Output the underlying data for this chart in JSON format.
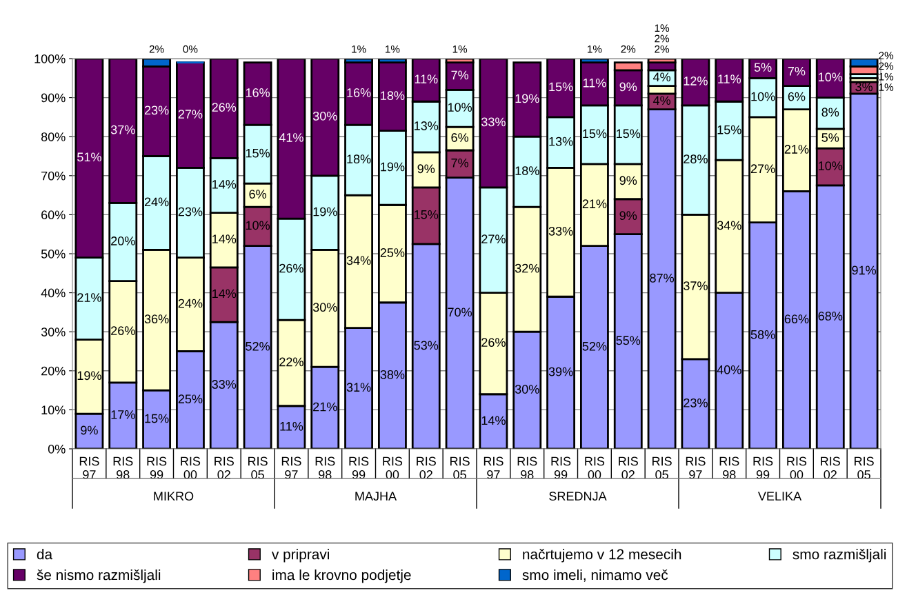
{
  "chart_data": {
    "type": "bar",
    "stacked": true,
    "categories": [
      "RIS\n97",
      "RIS\n98",
      "RIS\n99",
      "RIS\n00",
      "RIS\n02",
      "RIS\n05",
      "RIS\n97",
      "RIS\n98",
      "RIS\n99",
      "RIS\n00",
      "RIS\n02",
      "RIS\n05",
      "RIS\n97",
      "RIS\n98",
      "RIS\n99",
      "RIS\n00",
      "RIS\n02",
      "RIS\n05",
      "RIS\n97",
      "RIS\n98",
      "RIS\n99",
      "RIS\n00",
      "RIS\n02",
      "RIS\n05"
    ],
    "annotations": [
      "MIKRO",
      "MAJHA",
      "SREDNJA",
      "VELIKA"
    ],
    "ylim": [
      0,
      100
    ],
    "yticks": [
      {
        "value": 0,
        "label": "0%"
      },
      {
        "value": 10,
        "label": "10%"
      },
      {
        "value": 20,
        "label": "20%"
      },
      {
        "value": 30,
        "label": "30%"
      },
      {
        "value": 40,
        "label": "40%"
      },
      {
        "value": 50,
        "label": "50%"
      },
      {
        "value": 60,
        "label": "60%"
      },
      {
        "value": 70,
        "label": "70%"
      },
      {
        "value": 80,
        "label": "80%"
      },
      {
        "value": 90,
        "label": "90%"
      },
      {
        "value": 100,
        "label": "100%"
      }
    ],
    "grid": "y",
    "legend": "bottom",
    "series": [
      {
        "name": "da",
        "color": "#9999ff",
        "values": [
          9,
          17,
          15,
          25,
          32.5,
          52,
          11,
          21,
          31,
          37.5,
          52.5,
          69.5,
          14,
          30,
          39,
          52,
          55,
          87,
          23,
          40,
          58,
          66,
          67.5,
          91
        ],
        "value_labels": [
          "9%",
          "17%",
          "15%",
          "25%",
          "33%",
          "52%",
          "11%",
          "21%",
          "31%",
          "38%",
          "53%",
          "70%",
          "14%",
          "30%",
          "39%",
          "52%",
          "55%",
          "87%",
          "23%",
          "40%",
          "58%",
          "66%",
          "68%",
          "91%"
        ]
      },
      {
        "name": "v pripravi",
        "color": "#993366",
        "values": [
          null,
          null,
          null,
          null,
          14,
          10,
          null,
          null,
          null,
          null,
          14.5,
          7,
          null,
          null,
          null,
          null,
          9,
          4,
          null,
          null,
          null,
          null,
          9.5,
          3
        ],
        "value_labels": [
          null,
          null,
          null,
          null,
          "14%",
          "10%",
          null,
          null,
          null,
          null,
          "15%",
          "7%",
          null,
          null,
          null,
          null,
          "9%",
          "4%",
          null,
          null,
          null,
          null,
          "10%",
          "3%"
        ]
      },
      {
        "name": "načrtujemo v 12 mesecih",
        "color": "#ffffcc",
        "values": [
          19,
          26,
          36,
          24,
          14,
          6,
          22,
          30,
          34,
          25,
          9,
          6,
          26,
          32,
          33,
          21,
          9,
          2,
          37,
          34,
          27,
          21,
          5,
          1
        ],
        "value_labels": [
          "19%",
          "26%",
          "36%",
          "24%",
          "14%",
          "6%",
          "22%",
          "30%",
          "34%",
          "25%",
          "9%",
          "6%",
          "26%",
          "32%",
          "33%",
          "21%",
          "9%",
          "2%",
          "37%",
          "34%",
          "27%",
          "21%",
          "5%",
          "1%"
        ]
      },
      {
        "name": "smo razmišljali",
        "color": "#ccffff",
        "values": [
          21,
          20,
          24,
          23,
          14,
          15,
          26,
          19,
          18,
          19,
          13,
          9.5,
          27,
          18,
          13,
          15,
          15,
          4,
          28,
          15,
          10,
          6,
          8,
          1
        ],
        "value_labels": [
          "21%",
          "20%",
          "24%",
          "23%",
          "14%",
          "15%",
          "26%",
          "19%",
          "18%",
          "19%",
          "13%",
          "10%",
          "27%",
          "18%",
          "13%",
          "15%",
          "15%",
          "4%",
          "28%",
          "15%",
          "10%",
          "6%",
          "8%",
          "1%"
        ]
      },
      {
        "name": "še nismo razmišljali",
        "color": "#660066",
        "values": [
          51,
          37,
          23,
          27,
          25.5,
          16,
          41,
          30,
          16,
          17.5,
          11,
          7,
          33,
          19,
          15,
          11,
          9,
          2,
          12,
          11,
          5,
          7,
          10,
          null
        ],
        "value_labels": [
          "51%",
          "37%",
          "23%",
          "27%",
          "26%",
          "16%",
          "41%",
          "30%",
          "16%",
          "18%",
          "11%",
          "7%",
          "33%",
          "19%",
          "15%",
          "11%",
          "9%",
          "2%",
          "12%",
          "11%",
          "5%",
          "7%",
          "10%",
          null
        ]
      },
      {
        "name": "ima le krovno podjetje",
        "color": "#ff8080",
        "values": [
          null,
          null,
          null,
          null,
          null,
          null,
          null,
          null,
          null,
          null,
          null,
          1,
          null,
          null,
          null,
          null,
          2,
          1,
          null,
          null,
          null,
          null,
          null,
          2
        ],
        "value_labels": [
          null,
          null,
          null,
          null,
          null,
          null,
          null,
          null,
          null,
          null,
          null,
          "1%",
          null,
          null,
          null,
          null,
          "2%",
          "1%",
          null,
          null,
          null,
          null,
          null,
          "2%"
        ]
      },
      {
        "name": "smo imeli, nimamo več",
        "color": "#0066cc",
        "values": [
          null,
          null,
          2,
          0,
          null,
          null,
          null,
          null,
          1,
          1,
          null,
          null,
          null,
          null,
          null,
          1,
          null,
          null,
          null,
          null,
          null,
          null,
          null,
          2
        ],
        "value_labels": [
          null,
          null,
          "2%",
          "0%",
          null,
          null,
          null,
          null,
          "1%",
          "1%",
          null,
          null,
          null,
          null,
          null,
          "1%",
          null,
          null,
          null,
          null,
          null,
          null,
          null,
          "2%"
        ]
      }
    ]
  }
}
